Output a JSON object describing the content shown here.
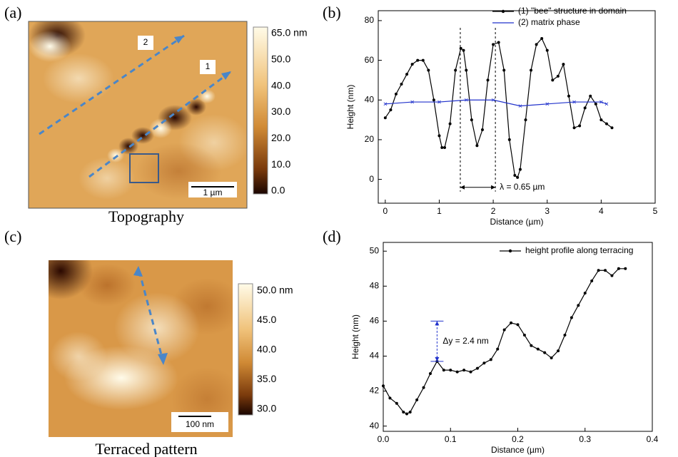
{
  "images": [
    {
      "panel_label": "(a)",
      "caption": "Topography",
      "scale_bar": "1 µm",
      "arrow_labels": [
        "2",
        "1"
      ],
      "colorbar_labels": [
        "65.0 nm",
        "50.0",
        "40.0",
        "30.0",
        "20.0",
        "10.0",
        "0.0"
      ]
    },
    {
      "panel_label": "(c)",
      "caption": "Terraced pattern",
      "scale_bar": "100 nm",
      "colorbar_labels": [
        "50.0 nm",
        "45.0",
        "40.0",
        "35.0",
        "30.0"
      ]
    }
  ],
  "chart_data": [
    {
      "type": "line",
      "panel_label": "(b)",
      "x_label": "Distance (µm)",
      "y_label": "Height (nm)",
      "xlim": [
        -0.13,
        5
      ],
      "ylim": [
        -12,
        85
      ],
      "xticks": [
        0,
        1,
        2,
        3,
        4,
        5
      ],
      "yticks": [
        0,
        20,
        40,
        60,
        80
      ],
      "legend": "top-right",
      "series": [
        {
          "name": "(1) \"bee\" structure in domain",
          "color": "#000000",
          "marker": true,
          "x": [
            0,
            0.1,
            0.2,
            0.3,
            0.4,
            0.5,
            0.6,
            0.7,
            0.8,
            0.9,
            1.0,
            1.05,
            1.1,
            1.2,
            1.3,
            1.4,
            1.45,
            1.5,
            1.6,
            1.7,
            1.8,
            1.9,
            2.0,
            2.1,
            2.2,
            2.3,
            2.4,
            2.45,
            2.5,
            2.6,
            2.7,
            2.8,
            2.9,
            3.0,
            3.1,
            3.2,
            3.3,
            3.4,
            3.5,
            3.6,
            3.7,
            3.8,
            3.9,
            4.0,
            4.1,
            4.2
          ],
          "values": [
            31,
            35,
            43,
            48,
            53,
            58,
            60,
            60,
            55,
            40,
            22,
            16,
            16,
            28,
            55,
            66,
            65,
            55,
            30,
            17,
            25,
            50,
            68,
            69,
            55,
            20,
            2,
            1,
            5,
            30,
            55,
            68,
            71,
            65,
            50,
            52,
            58,
            42,
            26,
            27,
            36,
            42,
            38,
            30,
            28,
            26
          ]
        },
        {
          "name": "(2) matrix phase",
          "color": "#2233cc",
          "marker": false,
          "x": [
            0,
            0.5,
            1.0,
            1.5,
            2.0,
            2.5,
            3.0,
            3.5,
            4.0,
            4.1
          ],
          "values": [
            38,
            39,
            39,
            40,
            40,
            37,
            38,
            39,
            39,
            38
          ]
        }
      ],
      "annotation": {
        "text": "λ = 0.65 µm",
        "x": [
          1.39,
          2.04
        ],
        "y": -4
      }
    },
    {
      "type": "line",
      "panel_label": "(d)",
      "x_label": "Distance (µm)",
      "y_label": "Height (nm)",
      "xlim": [
        0,
        0.4
      ],
      "ylim": [
        39.7,
        50.5
      ],
      "xticks": [
        {
          "value": 0,
          "label": "0.0"
        },
        0.1,
        0.2,
        0.3,
        0.4
      ],
      "yticks": [
        40,
        42,
        44,
        46,
        48,
        50
      ],
      "legend": "top-right",
      "series": [
        {
          "name": "height profile along terracing",
          "color": "#000000",
          "marker": true,
          "x": [
            0,
            0.01,
            0.02,
            0.03,
            0.035,
            0.04,
            0.05,
            0.06,
            0.07,
            0.08,
            0.09,
            0.1,
            0.11,
            0.12,
            0.13,
            0.14,
            0.15,
            0.16,
            0.17,
            0.18,
            0.19,
            0.2,
            0.21,
            0.22,
            0.23,
            0.24,
            0.25,
            0.26,
            0.27,
            0.28,
            0.29,
            0.3,
            0.31,
            0.32,
            0.33,
            0.34,
            0.35,
            0.36
          ],
          "values": [
            42.3,
            41.6,
            41.3,
            40.8,
            40.7,
            40.8,
            41.5,
            42.2,
            43,
            43.7,
            43.2,
            43.2,
            43.1,
            43.2,
            43.1,
            43.3,
            43.6,
            43.8,
            44.4,
            45.5,
            45.9,
            45.8,
            45.2,
            44.6,
            44.4,
            44.2,
            43.9,
            44.3,
            45.2,
            46.2,
            46.9,
            47.6,
            48.3,
            48.9,
            48.9,
            48.6,
            49,
            49
          ]
        }
      ],
      "annotation": {
        "text": "Δy = 2.4 nm",
        "x": 0.08,
        "y": [
          43.7,
          46.0
        ]
      }
    }
  ]
}
